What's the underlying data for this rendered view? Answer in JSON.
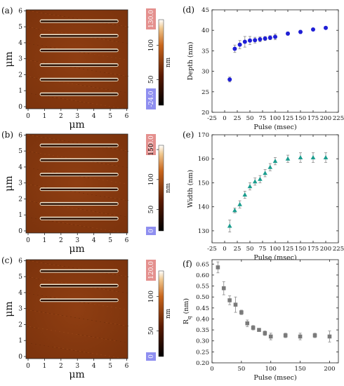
{
  "afm_panels": [
    {
      "label": "(a)",
      "xlabel": "μm",
      "ylabel": "μm",
      "xticks": [
        "0",
        "1",
        "2",
        "3",
        "4",
        "5",
        "6"
      ],
      "yticks": [
        "0",
        "1",
        "2",
        "3",
        "4",
        "5",
        "6"
      ],
      "line_count": 6,
      "colorbar": {
        "max_label": "130.0",
        "min_label": "-24.0",
        "ticks": [
          "100",
          "50"
        ],
        "unit": "nm"
      }
    },
    {
      "label": "(b)",
      "xlabel": "μm",
      "ylabel": "μm",
      "xticks": [
        "0",
        "1",
        "2",
        "3",
        "4",
        "5",
        "6"
      ],
      "yticks": [
        "0",
        "1",
        "2",
        "3",
        "4",
        "5",
        "6"
      ],
      "line_count": 6,
      "colorbar": {
        "max_label": "110.0",
        "min_label": "0",
        "ticks": [
          "150",
          "100",
          "50"
        ],
        "unit": "nm"
      }
    },
    {
      "label": "(c)",
      "xlabel": "μm",
      "ylabel": "μm",
      "xticks": [
        "0",
        "1",
        "2",
        "3",
        "4",
        "5",
        "6"
      ],
      "yticks": [
        "0",
        "1",
        "2",
        "3",
        "4",
        "5",
        "6"
      ],
      "line_count": 3,
      "colorbar": {
        "max_label": "120.0",
        "min_label": "0",
        "ticks": [
          "100",
          "50"
        ],
        "unit": "nm"
      }
    }
  ],
  "chart_data": [
    {
      "label": "(d)",
      "type": "scatter",
      "xlabel": "Pulse (msec)",
      "ylabel": "Depth (nm)",
      "xlim": [
        -25,
        225
      ],
      "ylim": [
        20,
        45
      ],
      "xticks": [
        -25,
        0,
        25,
        50,
        75,
        100,
        125,
        150,
        175,
        200,
        225
      ],
      "yticks": [
        20,
        25,
        30,
        35,
        40,
        45
      ],
      "color": "#1f1fd6",
      "marker": "circle",
      "x": [
        10,
        20,
        30,
        40,
        50,
        60,
        70,
        80,
        90,
        100,
        125,
        150,
        175,
        200
      ],
      "y": [
        28.0,
        35.5,
        36.5,
        37.2,
        37.5,
        37.6,
        37.8,
        38.0,
        38.2,
        38.4,
        39.2,
        39.6,
        40.2,
        40.6
      ],
      "err": [
        0.6,
        0.9,
        1.0,
        1.3,
        1.0,
        0.7,
        0.6,
        0.5,
        0.5,
        0.7,
        0.4,
        0.4,
        0.3,
        0.3
      ]
    },
    {
      "label": "(e)",
      "type": "scatter",
      "xlabel": "Pulse (msec)",
      "ylabel": "Width (nm)",
      "xlim": [
        -25,
        225
      ],
      "ylim": [
        125,
        170
      ],
      "xticks": [
        -25,
        0,
        25,
        50,
        75,
        100,
        125,
        150,
        175,
        200,
        225
      ],
      "yticks": [
        130,
        140,
        150,
        160,
        170
      ],
      "color": "#1a9d8e",
      "marker": "triangle",
      "x": [
        10,
        20,
        30,
        40,
        50,
        60,
        70,
        80,
        90,
        100,
        125,
        150,
        175,
        200
      ],
      "y": [
        132,
        138.5,
        141,
        145,
        148.5,
        150.5,
        151.5,
        154,
        156.5,
        159,
        160,
        160.5,
        160.5,
        160.5
      ],
      "err": [
        2.5,
        1.0,
        1.5,
        1.5,
        1.5,
        1.5,
        1.5,
        1.5,
        1.5,
        1.5,
        1.5,
        2.0,
        2.0,
        2.0
      ]
    },
    {
      "label": "(f)",
      "type": "scatter",
      "xlabel": "Pulse (msec)",
      "ylabel": "Rq (nm)",
      "xlim": [
        0,
        215
      ],
      "ylim": [
        0.2,
        0.67
      ],
      "xticks": [
        0,
        50,
        100,
        150,
        200
      ],
      "yticks": [
        0.2,
        0.25,
        0.3,
        0.35,
        0.4,
        0.45,
        0.5,
        0.55,
        0.6,
        0.65
      ],
      "color": "#7a7a7a",
      "marker": "square",
      "x": [
        10,
        20,
        30,
        40,
        50,
        60,
        70,
        80,
        90,
        100,
        125,
        150,
        175,
        200
      ],
      "y": [
        0.635,
        0.54,
        0.485,
        0.465,
        0.43,
        0.38,
        0.36,
        0.35,
        0.335,
        0.32,
        0.325,
        0.32,
        0.325,
        0.32
      ],
      "err": [
        0.025,
        0.03,
        0.02,
        0.035,
        0.01,
        0.015,
        0.01,
        0.005,
        0.01,
        0.015,
        0.01,
        0.015,
        0.01,
        0.025
      ]
    }
  ]
}
